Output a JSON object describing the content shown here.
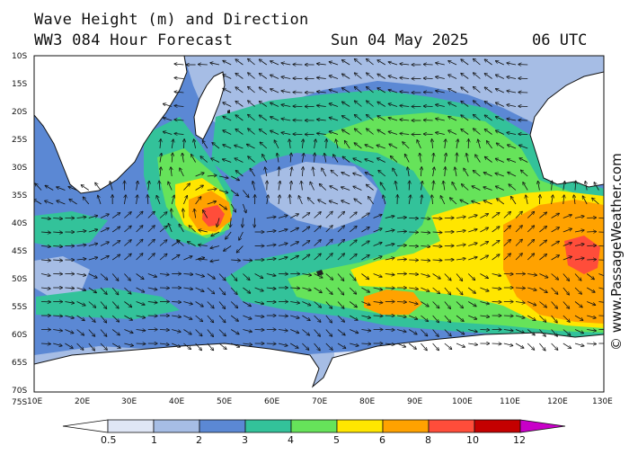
{
  "header": {
    "title_line1": "Wave Height (m) and Direction",
    "title_line2": "WW3 084 Hour Forecast",
    "date": "Sun 04 May 2025",
    "time": "06 UTC"
  },
  "credit": "© www.PassageWeather.com",
  "axes": {
    "lat_labels": [
      "10S",
      "15S",
      "20S",
      "25S",
      "30S",
      "35S",
      "40S",
      "45S",
      "50S",
      "55S",
      "60S",
      "65S",
      "70S",
      "75S"
    ],
    "lon_labels": [
      "10E",
      "20E",
      "30E",
      "40E",
      "50E",
      "60E",
      "70E",
      "80E",
      "90E",
      "100E",
      "110E",
      "120E",
      "130E"
    ]
  },
  "legend": {
    "labels": [
      "0.5",
      "1",
      "2",
      "3",
      "4",
      "5",
      "6",
      "8",
      "10",
      "12"
    ],
    "colors": [
      "#ffffff",
      "#dfe6f5",
      "#a6bde5",
      "#5b88d4",
      "#33c29a",
      "#66e35a",
      "#ffe600",
      "#ffa200",
      "#ff4d3a",
      "#c40000",
      "#c800c8"
    ]
  },
  "colors": {
    "land": "#ffffff",
    "ocean_calm": "#a6bde5",
    "ocean_moderate": "#5b88d4",
    "wave_teal": "#33c29a",
    "wave_green": "#66e35a",
    "wave_yellow": "#ffe600",
    "wave_orange": "#ffa200",
    "wave_red": "#ff4d3a"
  }
}
